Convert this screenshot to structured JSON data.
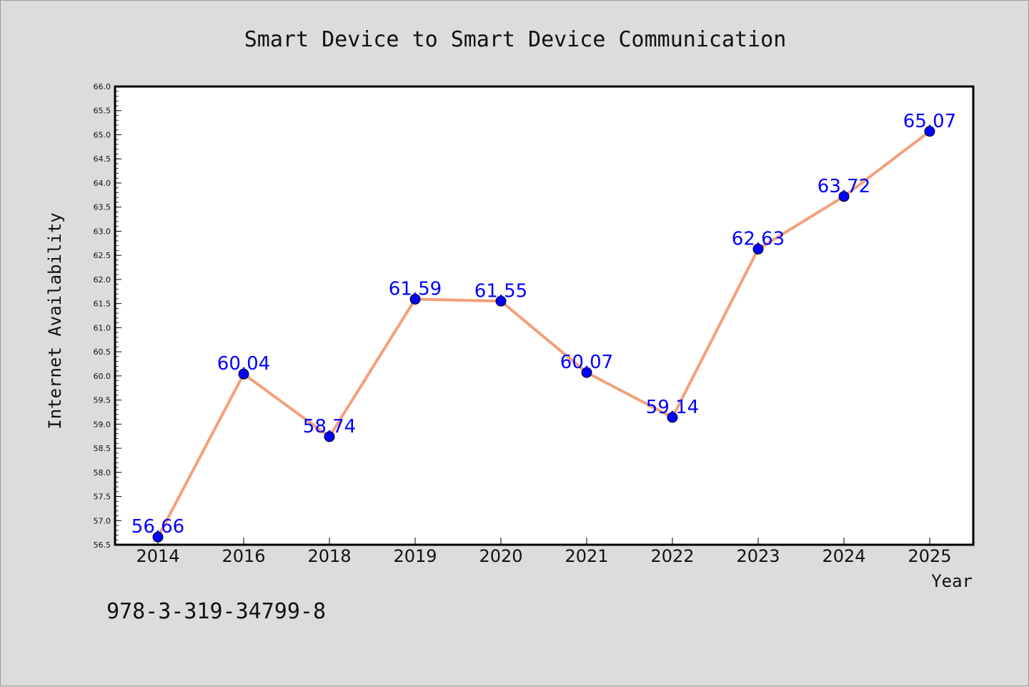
{
  "chart_data": {
    "type": "line",
    "title": "Smart Device to Smart Device Communication",
    "xlabel": "Year",
    "ylabel": "Internet Availability",
    "categories": [
      "2014",
      "2016",
      "2018",
      "2019",
      "2020",
      "2021",
      "2022",
      "2023",
      "2024",
      "2025"
    ],
    "series": [
      {
        "values": [
          56.66,
          60.04,
          58.74,
          61.59,
          61.55,
          60.07,
          59.14,
          62.63,
          63.72,
          65.07
        ],
        "labels": [
          "56.66",
          "60.04",
          "58.74",
          "61.59",
          "61.55",
          "60.07",
          "59.14",
          "62.63",
          "63.72",
          "65.07"
        ],
        "line_color": "#f4a07a",
        "marker_color": "#0000ff"
      }
    ],
    "ylim": [
      56.5,
      66.0
    ],
    "yticks": [
      "56.5",
      "57.0",
      "57.5",
      "58.0",
      "58.5",
      "59.0",
      "59.5",
      "60.0",
      "60.5",
      "61.0",
      "61.5",
      "62.0",
      "62.5",
      "63.0",
      "63.5",
      "64.0",
      "64.5",
      "65.0",
      "65.5",
      "66.0"
    ],
    "grid": false,
    "legend": false,
    "data_label_color": "#0000ff",
    "background_color": "#dcdcdc",
    "plot_background_color": "#ffffff"
  },
  "footer_text": "978-3-319-34799-8"
}
